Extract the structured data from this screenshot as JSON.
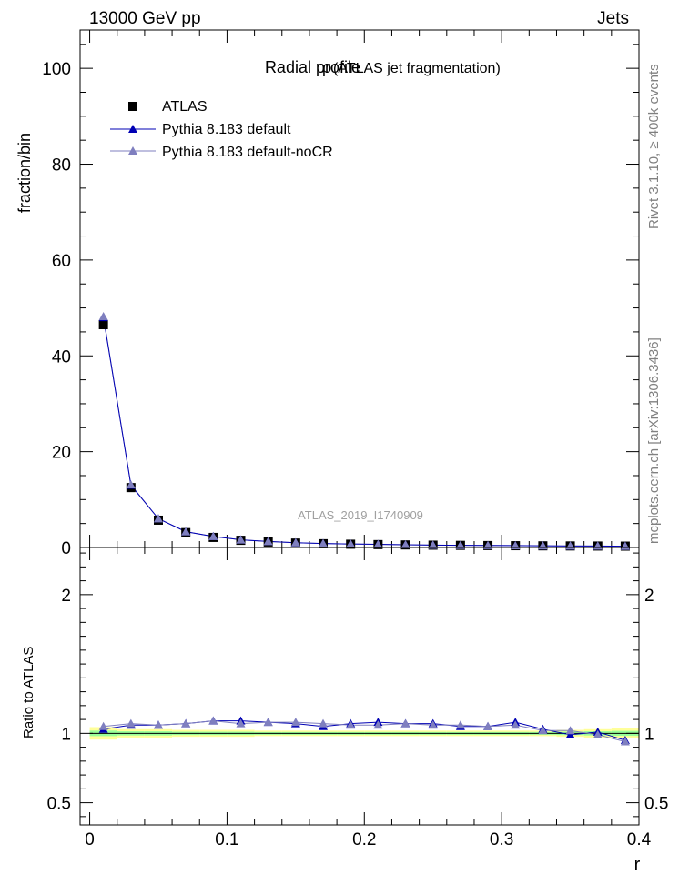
{
  "header": {
    "left": "13000 GeV pp",
    "right": "Jets"
  },
  "side_labels": {
    "rivet": "Rivet 3.1.10, ≥ 400k events",
    "mcplots": "mcplots.cern.ch [arXiv:1306.3436]"
  },
  "chart_data": [
    {
      "type": "scatter",
      "title": "Radial profile",
      "title_symbol": "ρ",
      "title_suffix": "(ATLAS jet fragmentation)",
      "ylabel": "fraction/bin",
      "xlim": [
        -0.007,
        0.4
      ],
      "ylim": [
        0,
        108
      ],
      "yticks": [
        0,
        20,
        40,
        60,
        80,
        100
      ],
      "watermark": "ATLAS_2019_I1740909",
      "legend_position": "top-left",
      "x": [
        0.01,
        0.03,
        0.05,
        0.07,
        0.09,
        0.11,
        0.13,
        0.15,
        0.17,
        0.19,
        0.21,
        0.23,
        0.25,
        0.27,
        0.29,
        0.31,
        0.33,
        0.35,
        0.37,
        0.39
      ],
      "series": [
        {
          "name": "ATLAS",
          "marker": "square",
          "color": "#000000",
          "values": [
            46.5,
            12.5,
            5.7,
            3.1,
            2.1,
            1.5,
            1.15,
            0.92,
            0.78,
            0.68,
            0.6,
            0.53,
            0.48,
            0.44,
            0.4,
            0.37,
            0.34,
            0.32,
            0.3,
            0.28
          ]
        },
        {
          "name": "Pythia 8.183 default",
          "marker": "triangle",
          "color": "#0000b4",
          "values": [
            48.0,
            13.0,
            6.0,
            3.3,
            2.3,
            1.6,
            1.25,
            1.0,
            0.82,
            0.73,
            0.66,
            0.57,
            0.51,
            0.46,
            0.42,
            0.4,
            0.35,
            0.32,
            0.3,
            0.27
          ]
        },
        {
          "name": "Pythia 8.183 default-noCR",
          "marker": "triangle",
          "color": "#7f7fbf",
          "values": [
            48.2,
            13.1,
            6.0,
            3.3,
            2.3,
            1.6,
            1.25,
            1.0,
            0.82,
            0.73,
            0.65,
            0.57,
            0.51,
            0.46,
            0.42,
            0.39,
            0.35,
            0.33,
            0.3,
            0.26
          ]
        }
      ]
    },
    {
      "type": "line",
      "ylabel": "Ratio to ATLAS",
      "xlabel": "r",
      "xlim": [
        -0.007,
        0.4
      ],
      "ylim": [
        0.34,
        2.34
      ],
      "yticks": [
        0.5,
        1,
        2
      ],
      "xticks": [
        0,
        0.1,
        0.2,
        0.3,
        0.4
      ],
      "xtick_labels": [
        "0",
        "0.1",
        "0.2",
        "0.3",
        "0.4"
      ],
      "x": [
        0.01,
        0.03,
        0.05,
        0.07,
        0.09,
        0.11,
        0.13,
        0.15,
        0.17,
        0.19,
        0.21,
        0.23,
        0.25,
        0.27,
        0.29,
        0.31,
        0.33,
        0.35,
        0.37,
        0.39
      ],
      "band_outer": [
        0.045,
        0.03,
        0.03,
        0.025,
        0.025,
        0.025,
        0.02,
        0.02,
        0.02,
        0.02,
        0.02,
        0.02,
        0.02,
        0.02,
        0.02,
        0.02,
        0.02,
        0.025,
        0.03,
        0.035
      ],
      "band_inner": [
        0.02,
        0.015,
        0.015,
        0.012,
        0.012,
        0.012,
        0.01,
        0.01,
        0.01,
        0.01,
        0.01,
        0.01,
        0.01,
        0.01,
        0.01,
        0.01,
        0.01,
        0.012,
        0.015,
        0.018
      ],
      "band_colors": {
        "outer": "#ffff99",
        "inner": "#99ff99"
      },
      "series": [
        {
          "name": "Pythia 8.183 default",
          "color": "#0000b4",
          "values": [
            1.03,
            1.06,
            1.06,
            1.07,
            1.09,
            1.09,
            1.08,
            1.07,
            1.05,
            1.07,
            1.08,
            1.07,
            1.07,
            1.05,
            1.05,
            1.08,
            1.03,
            0.99,
            1.01,
            0.95
          ]
        },
        {
          "name": "Pythia 8.183 default-noCR",
          "color": "#7f7fbf",
          "values": [
            1.05,
            1.07,
            1.06,
            1.07,
            1.09,
            1.07,
            1.08,
            1.08,
            1.07,
            1.06,
            1.06,
            1.07,
            1.06,
            1.06,
            1.05,
            1.06,
            1.02,
            1.02,
            0.99,
            0.94
          ]
        }
      ]
    }
  ]
}
